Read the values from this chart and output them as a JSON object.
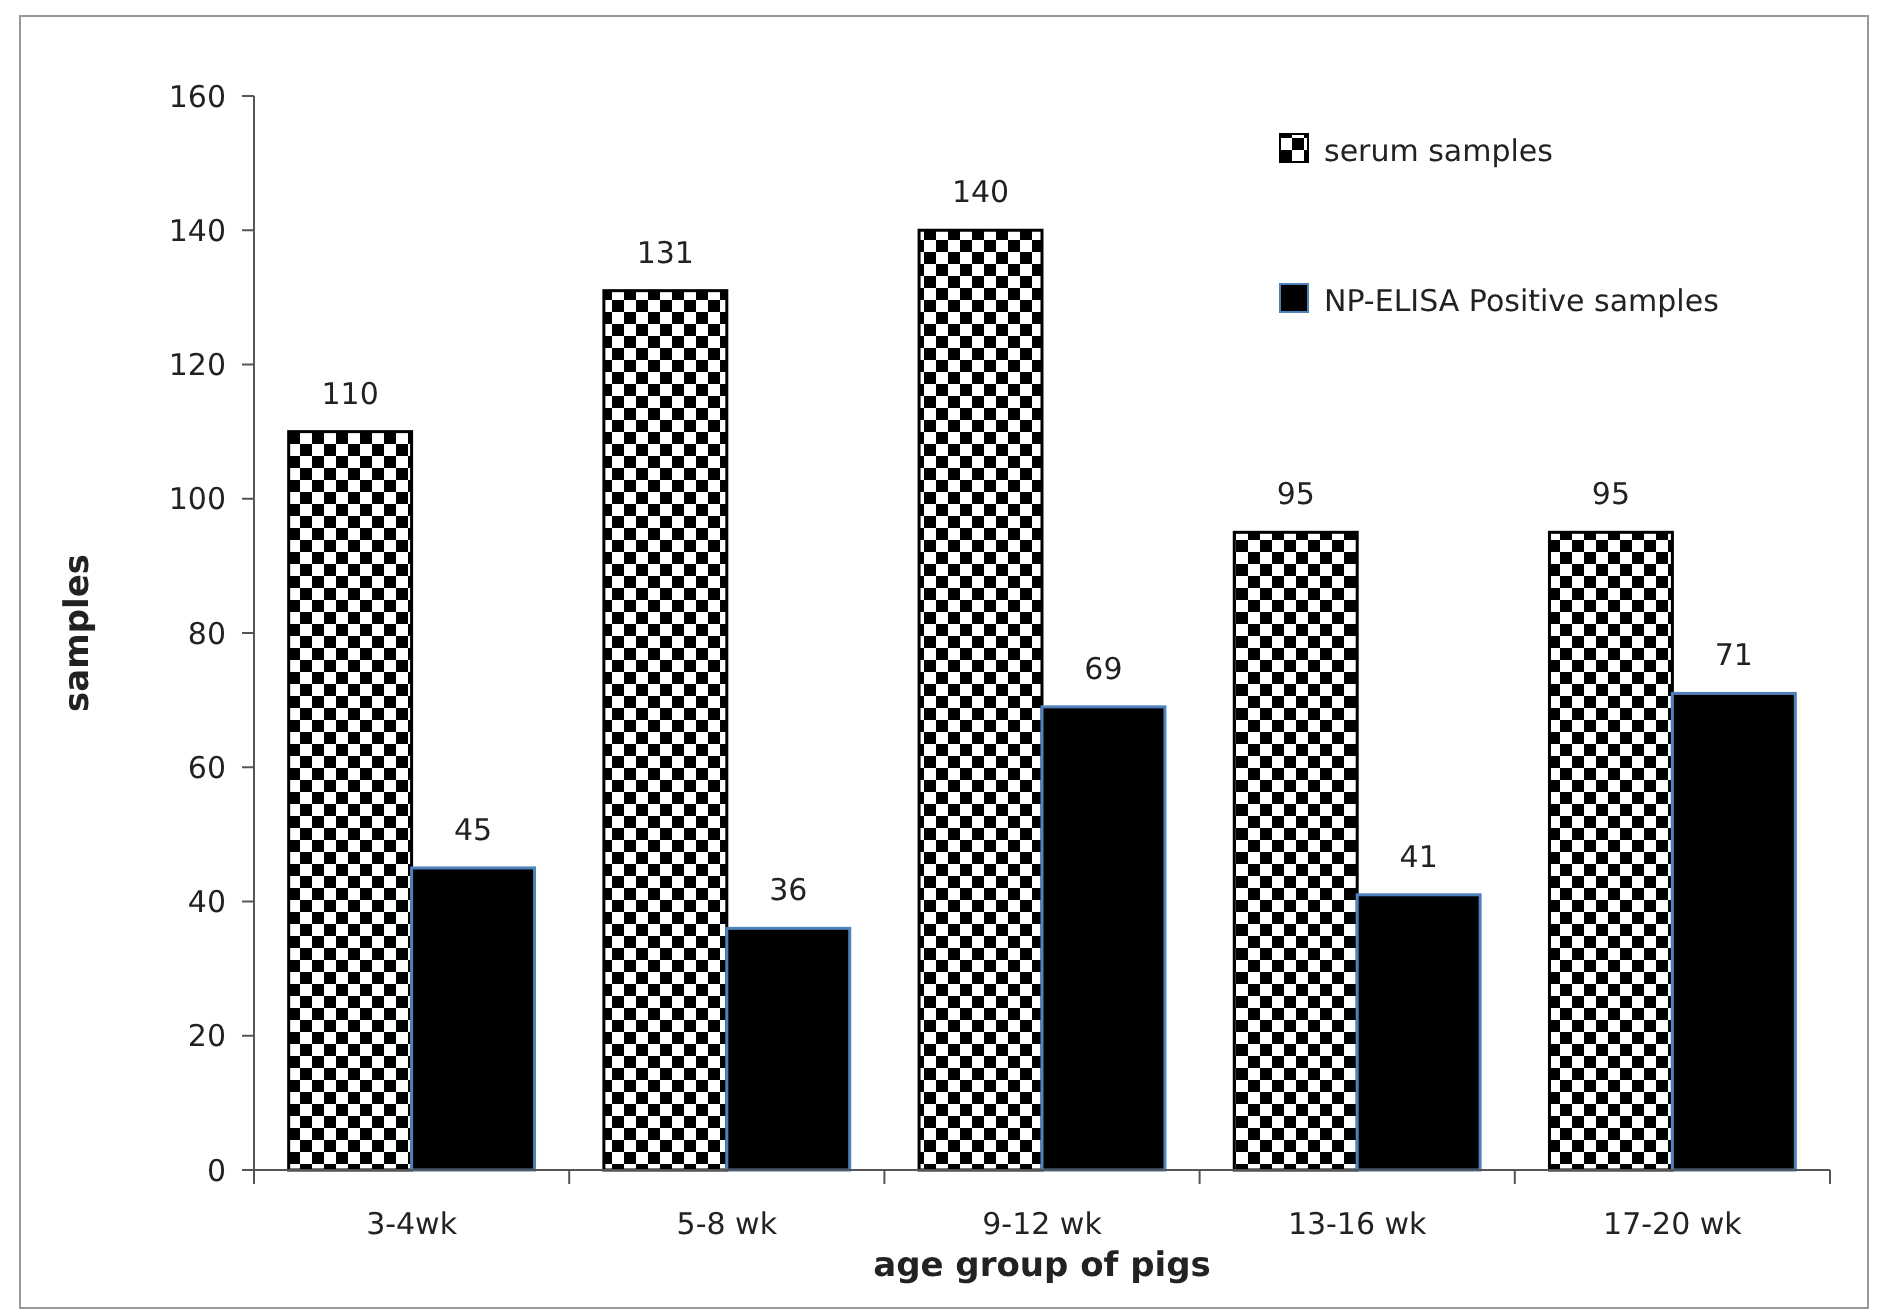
{
  "chart_data": {
    "type": "bar",
    "xlabel": "age group of pigs",
    "ylabel": "samples",
    "categories": [
      "3-4wk",
      "5-8 wk",
      "9-12 wk",
      "13-16 wk",
      "17-20 wk"
    ],
    "series": [
      {
        "name": "serum samples",
        "color": "#000000",
        "values": [
          110,
          131,
          140,
          95,
          95
        ]
      },
      {
        "name": "NP-ELISA Positive samples",
        "color": "#000000",
        "values": [
          45,
          36,
          69,
          41,
          71
        ]
      }
    ],
    "ylim": [
      0,
      160
    ],
    "yticks": [
      0,
      20,
      40,
      60,
      80,
      100,
      120,
      140,
      160
    ],
    "data_labels": true,
    "legend": "top right",
    "grid": false
  }
}
